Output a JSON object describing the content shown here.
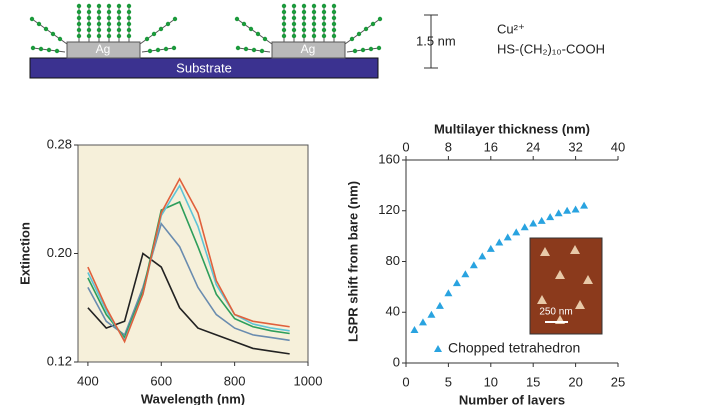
{
  "diagram": {
    "blocks": [
      "Ag",
      "Ag"
    ],
    "substrate": "Substrate",
    "height_label": "1.5 nm",
    "ion": "Cu²⁺",
    "linker": "HS-(CH₂)₁₀-COOH"
  },
  "chart_data": [
    {
      "type": "line",
      "x_label": "Wavelength (nm)",
      "y_label": "Extinction",
      "x": [
        400,
        450,
        500,
        550,
        600,
        650,
        700,
        750,
        800,
        850,
        900,
        950
      ],
      "series": [
        {
          "color": "#222222",
          "values": [
            0.16,
            0.145,
            0.15,
            0.2,
            0.19,
            0.16,
            0.145,
            0.14,
            0.135,
            0.13,
            0.128,
            0.126
          ]
        },
        {
          "color": "#6a8caf",
          "values": [
            0.175,
            0.15,
            0.14,
            0.175,
            0.222,
            0.205,
            0.175,
            0.155,
            0.145,
            0.14,
            0.138,
            0.136
          ]
        },
        {
          "color": "#2e9e5b",
          "values": [
            0.182,
            0.155,
            0.138,
            0.172,
            0.232,
            0.238,
            0.205,
            0.17,
            0.152,
            0.146,
            0.143,
            0.141
          ]
        },
        {
          "color": "#5ec4d6",
          "values": [
            0.186,
            0.158,
            0.136,
            0.17,
            0.228,
            0.25,
            0.22,
            0.177,
            0.155,
            0.148,
            0.145,
            0.143
          ]
        },
        {
          "color": "#e0603c",
          "values": [
            0.19,
            0.16,
            0.135,
            0.17,
            0.23,
            0.255,
            0.23,
            0.18,
            0.155,
            0.15,
            0.148,
            0.146
          ]
        }
      ],
      "xlim": [
        373,
        1000
      ],
      "xticks": [
        400,
        600,
        800,
        1000
      ],
      "ylim": [
        0.12,
        0.28
      ],
      "yticks": [
        0.12,
        {
          "value": 0.2,
          "label": "0.20"
        },
        0.28
      ]
    },
    {
      "type": "scatter",
      "x_label": "Number of layers",
      "y_label": "LSPR shift from bare (nm)",
      "x2_label": "Multilayer thickness (nm)",
      "x": [
        1,
        2,
        3,
        4,
        5,
        6,
        7,
        8,
        9,
        10,
        11,
        12,
        13,
        14,
        15,
        16,
        17,
        18,
        19,
        20,
        21
      ],
      "series": [
        {
          "name": "Chopped tetrahedron",
          "color": "#29a3e0",
          "values": [
            26,
            32,
            38,
            45,
            55,
            63,
            70,
            77,
            84,
            90,
            95,
            99,
            103,
            107,
            110,
            112,
            115,
            118,
            120,
            121,
            124
          ]
        }
      ],
      "xlim": [
        0,
        25
      ],
      "xticks": [
        0,
        5,
        10,
        15,
        20,
        25
      ],
      "x2lim": [
        0,
        40
      ],
      "x2ticks": [
        0,
        8,
        16,
        24,
        32,
        40
      ],
      "ylim": [
        0,
        160
      ],
      "yticks": [
        0,
        40,
        80,
        120,
        160
      ],
      "legend": "lower right",
      "annotations": [
        "250 nm"
      ]
    }
  ]
}
